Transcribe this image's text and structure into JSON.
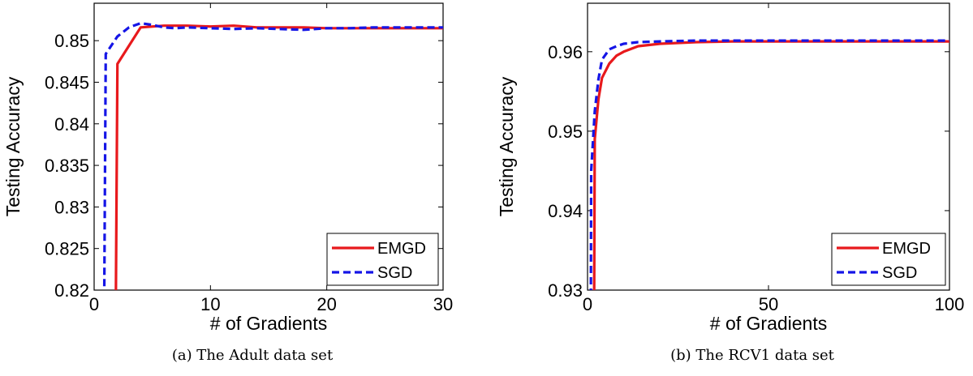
{
  "chart_data": [
    {
      "type": "line",
      "caption": "(a) The Adult data set",
      "xlabel": "# of Gradients",
      "ylabel": "Testing Accuracy",
      "xlim": [
        0,
        30
      ],
      "ylim": [
        0.82,
        0.8545
      ],
      "xticks": [
        0,
        10,
        20,
        30
      ],
      "yticks": [
        0.82,
        0.825,
        0.83,
        0.835,
        0.84,
        0.845,
        0.85
      ],
      "ytick_labels": [
        "0.82",
        "0.825",
        "0.83",
        "0.835",
        "0.84",
        "0.845",
        "0.85"
      ],
      "legend_position": "bottom-right",
      "series": [
        {
          "name": "EMGD",
          "color": "#e8191c",
          "dash": "solid",
          "x": [
            1.85,
            2,
            4,
            6,
            8,
            10,
            12,
            14,
            16,
            18,
            20,
            22,
            24,
            26,
            28,
            30
          ],
          "y": [
            0.815,
            0.8472,
            0.8516,
            0.8518,
            0.8518,
            0.8517,
            0.8518,
            0.8516,
            0.8516,
            0.8516,
            0.8515,
            0.8515,
            0.8515,
            0.8515,
            0.8515,
            0.8515
          ]
        },
        {
          "name": "SGD",
          "color": "#1515e6",
          "dash": "dashed",
          "x": [
            0.85,
            1,
            2,
            3,
            4,
            5,
            6,
            7,
            8,
            10,
            12,
            14,
            16,
            18,
            20,
            22,
            24,
            26,
            28,
            30
          ],
          "y": [
            0.815,
            0.8484,
            0.8505,
            0.8516,
            0.8521,
            0.8519,
            0.8516,
            0.8515,
            0.8516,
            0.8515,
            0.8514,
            0.8515,
            0.8514,
            0.8513,
            0.8515,
            0.8515,
            0.8516,
            0.8516,
            0.8516,
            0.8516
          ]
        }
      ]
    },
    {
      "type": "line",
      "caption": "(b) The RCV1 data set",
      "xlabel": "# of Gradients",
      "ylabel": "Testing Accuracy",
      "xlim": [
        0,
        100
      ],
      "ylim": [
        0.93,
        0.9661
      ],
      "xticks": [
        0,
        50,
        100
      ],
      "yticks": [
        0.93,
        0.94,
        0.95,
        0.96
      ],
      "ytick_labels": [
        "0.93",
        "0.94",
        "0.95",
        "0.96"
      ],
      "legend_position": "bottom-right",
      "series": [
        {
          "name": "EMGD",
          "color": "#e8191c",
          "dash": "solid",
          "x": [
            1.8,
            2,
            3,
            4,
            6,
            8,
            10,
            14,
            20,
            30,
            40,
            50,
            60,
            70,
            80,
            90,
            100
          ],
          "y": [
            0.925,
            0.949,
            0.954,
            0.9567,
            0.9585,
            0.9595,
            0.96,
            0.9607,
            0.961,
            0.9612,
            0.9613,
            0.9613,
            0.9613,
            0.9613,
            0.9613,
            0.9613,
            0.9613
          ]
        },
        {
          "name": "SGD",
          "color": "#1515e6",
          "dash": "dashed",
          "x": [
            0.9,
            1,
            2,
            3,
            4,
            6,
            8,
            10,
            14,
            20,
            30,
            50,
            70,
            100
          ],
          "y": [
            0.925,
            0.945,
            0.9525,
            0.9565,
            0.959,
            0.9603,
            0.9607,
            0.961,
            0.9612,
            0.9613,
            0.9614,
            0.9614,
            0.9614,
            0.9614
          ]
        }
      ]
    }
  ]
}
